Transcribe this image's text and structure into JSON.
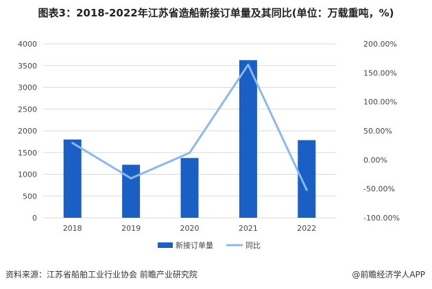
{
  "title": "图表3：2018-2022年江苏省造船新接订单量及其同比(单位：万载重吨，%)",
  "footer": {
    "source": "资料来源：江苏省船舶工业行业协会 前瞻产业研究院",
    "app": "@前瞻经济学人APP"
  },
  "chart_data": {
    "type": "bar+line",
    "categories": [
      "2018",
      "2019",
      "2020",
      "2021",
      "2022"
    ],
    "series": [
      {
        "name": "新接订单量",
        "type": "bar",
        "axis": "left",
        "color": "#1a5fc4",
        "values": [
          1800,
          1220,
          1375,
          3625,
          1785
        ]
      },
      {
        "name": "同比",
        "type": "line",
        "axis": "right",
        "color": "#8ab8f0",
        "values": [
          29,
          -32,
          12,
          164,
          -52
        ]
      }
    ],
    "left_axis": {
      "ylim": [
        0,
        4000
      ],
      "ticks": [
        "0",
        "500",
        "1000",
        "1500",
        "2000",
        "2500",
        "3000",
        "3500",
        "4000"
      ]
    },
    "right_axis": {
      "ylim": [
        -100,
        200
      ],
      "ticks": [
        "-100.00%",
        "-50.00%",
        "0.00%",
        "50.00%",
        "100.00%",
        "150.00%",
        "200.00%"
      ]
    },
    "grid": true,
    "legend": "bottom"
  }
}
